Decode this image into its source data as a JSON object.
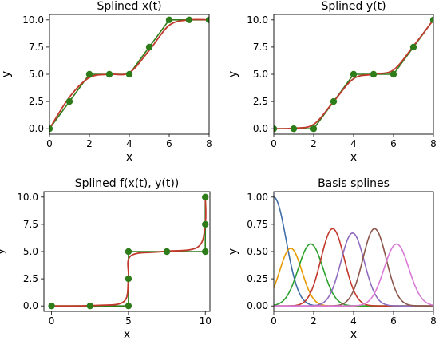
{
  "chart_data": [
    {
      "type": "line",
      "title": "Splined x(t)",
      "xlabel": "x",
      "ylabel": "y",
      "xlim": [
        0,
        8
      ],
      "ylim": [
        -0.5,
        10.5
      ],
      "xticks": [
        "0",
        "2",
        "4",
        "6",
        "8"
      ],
      "yticks": [
        "0.0",
        "2.5",
        "5.0",
        "7.5",
        "10.0"
      ],
      "control_points": {
        "x": [
          0,
          1,
          2,
          3,
          4,
          5,
          6,
          7,
          8
        ],
        "y": [
          0,
          2.5,
          5,
          5,
          5,
          7.5,
          10,
          10,
          10
        ]
      },
      "spline": {
        "x": [
          0,
          1,
          2,
          3,
          4,
          5,
          6,
          7,
          8
        ],
        "y": [
          0,
          2.9,
          4.7,
          5.0,
          5.15,
          7.2,
          9.5,
          10.0,
          10.0
        ]
      },
      "colors": {
        "control": "#2e7d1a",
        "spline": "#c0392b",
        "marker": "#2e7d1a"
      }
    },
    {
      "type": "line",
      "title": "Splined y(t)",
      "xlabel": "x",
      "ylabel": "y",
      "xlim": [
        0,
        8
      ],
      "ylim": [
        -0.5,
        10.5
      ],
      "xticks": [
        "0",
        "2",
        "4",
        "6",
        "8"
      ],
      "yticks": [
        "0.0",
        "2.5",
        "5.0",
        "7.5",
        "10.0"
      ],
      "control_points": {
        "x": [
          0,
          1,
          2,
          3,
          4,
          5,
          6,
          7,
          8
        ],
        "y": [
          0,
          0,
          0,
          2.5,
          5,
          5,
          5,
          7.5,
          10
        ]
      },
      "spline": {
        "x": [
          0,
          1,
          2,
          3,
          4,
          5,
          6,
          7,
          8
        ],
        "y": [
          0,
          0.05,
          0.4,
          2.5,
          4.6,
          5.0,
          5.4,
          7.6,
          10.0
        ]
      },
      "colors": {
        "control": "#2e7d1a",
        "spline": "#c0392b",
        "marker": "#2e7d1a"
      }
    },
    {
      "type": "line",
      "title": "Splined f(x(t), y(t))",
      "xlabel": "x",
      "ylabel": "y",
      "xlim": [
        -0.5,
        10.3
      ],
      "ylim": [
        -0.5,
        10.5
      ],
      "xticks": [
        "0",
        "5",
        "10"
      ],
      "yticks": [
        "0.0",
        "2.5",
        "5.0",
        "7.5",
        "10.0"
      ],
      "control_points": {
        "x": [
          0,
          2.5,
          5,
          5,
          5,
          7.5,
          10,
          10,
          10
        ],
        "y": [
          0,
          0,
          0,
          2.5,
          5,
          5,
          5,
          7.5,
          10
        ]
      },
      "spline": {
        "x": [
          0,
          2.9,
          4.7,
          5.0,
          5.15,
          7.2,
          9.5,
          10.0,
          10.0
        ],
        "y": [
          0,
          0.05,
          0.4,
          2.5,
          4.6,
          5.0,
          5.4,
          7.6,
          10.0
        ]
      },
      "colors": {
        "control": "#2e7d1a",
        "spline": "#c0392b",
        "marker": "#2e7d1a"
      }
    },
    {
      "type": "line",
      "title": "Basis splines",
      "xlabel": "x",
      "ylabel": "y",
      "xlim": [
        0,
        8
      ],
      "ylim": [
        -0.05,
        1.05
      ],
      "xticks": [
        "0",
        "2",
        "4",
        "6",
        "8"
      ],
      "yticks": [
        "0.00",
        "0.25",
        "0.50",
        "0.75",
        "1.00"
      ],
      "bases": [
        {
          "center": 0.0,
          "peak": 1.0,
          "width": 1.0,
          "color": "#3f6ea8"
        },
        {
          "center": 0.85,
          "peak": 0.53,
          "width": 0.9,
          "color": "#e69b00"
        },
        {
          "center": 1.85,
          "peak": 0.57,
          "width": 1.0,
          "color": "#2ca02c"
        },
        {
          "center": 2.95,
          "peak": 0.71,
          "width": 0.95,
          "color": "#c0392b"
        },
        {
          "center": 3.95,
          "peak": 0.67,
          "width": 0.95,
          "color": "#8e6bbf"
        },
        {
          "center": 5.05,
          "peak": 0.71,
          "width": 0.95,
          "color": "#8c564b"
        },
        {
          "center": 6.15,
          "peak": 0.57,
          "width": 1.0,
          "color": "#d97ad6"
        }
      ]
    }
  ]
}
